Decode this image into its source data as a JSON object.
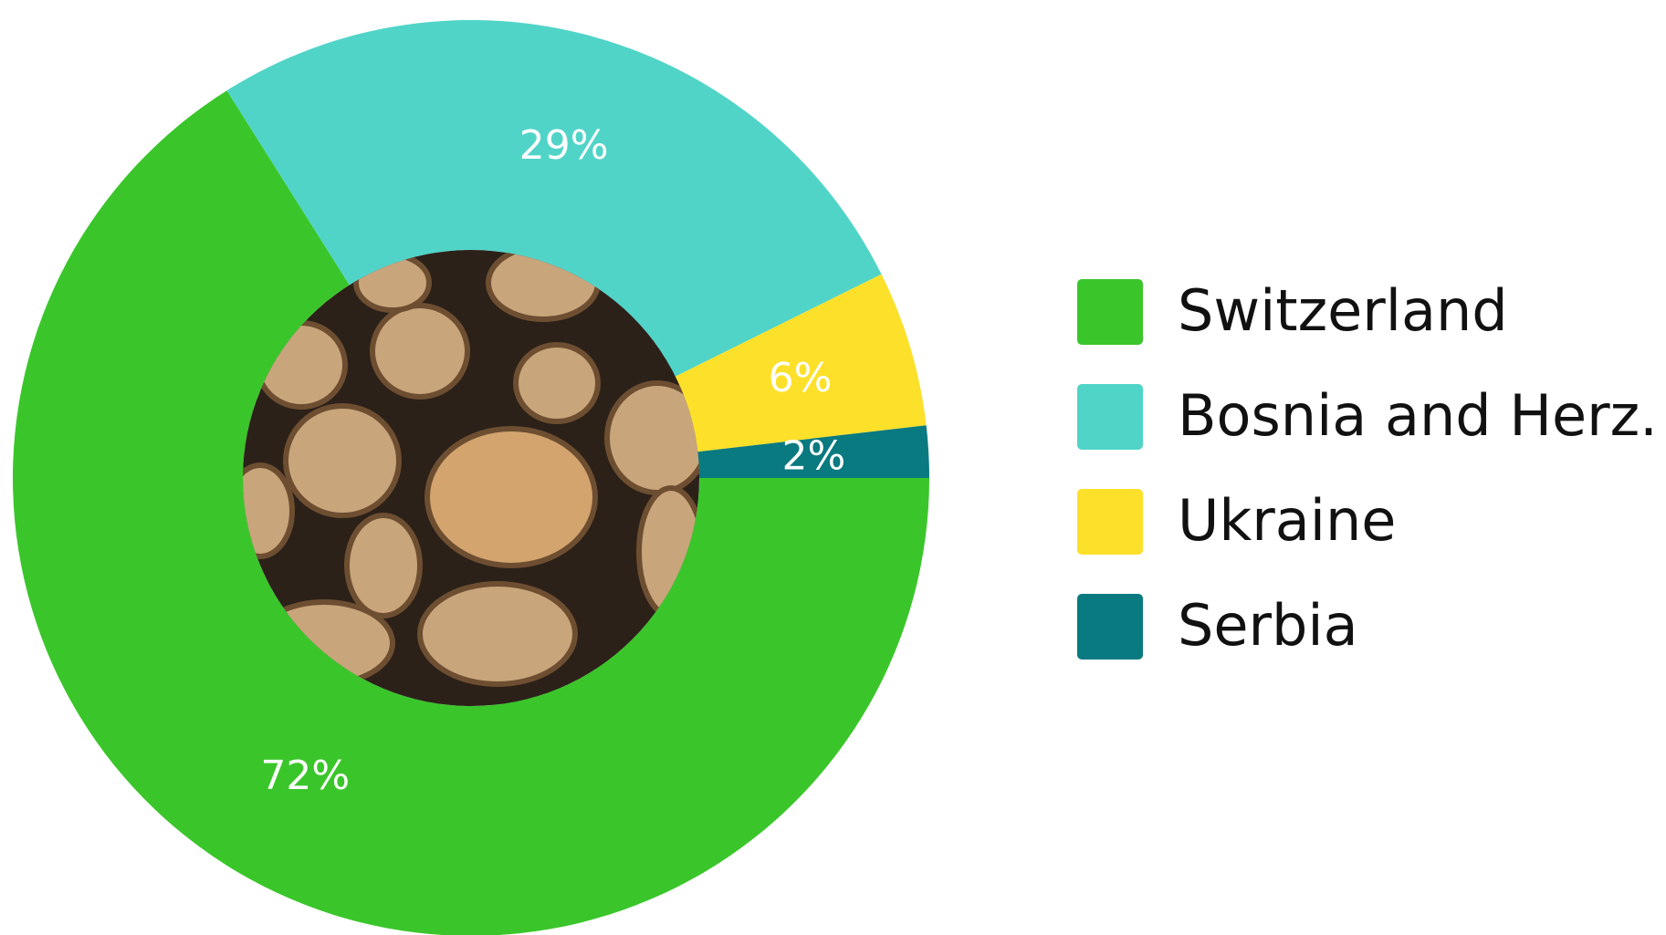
{
  "chart_data": {
    "type": "pie",
    "donut": true,
    "categories": [
      "Switzerland",
      "Bosnia and Herz.",
      "Ukraine",
      "Serbia"
    ],
    "values": [
      72,
      29,
      6,
      2
    ],
    "value_labels": [
      "72%",
      "29%",
      "6%",
      "2%"
    ],
    "colors": [
      "#3ac62a",
      "#51d4c8",
      "#fde02a",
      "#087a80"
    ],
    "legend": "right"
  }
}
